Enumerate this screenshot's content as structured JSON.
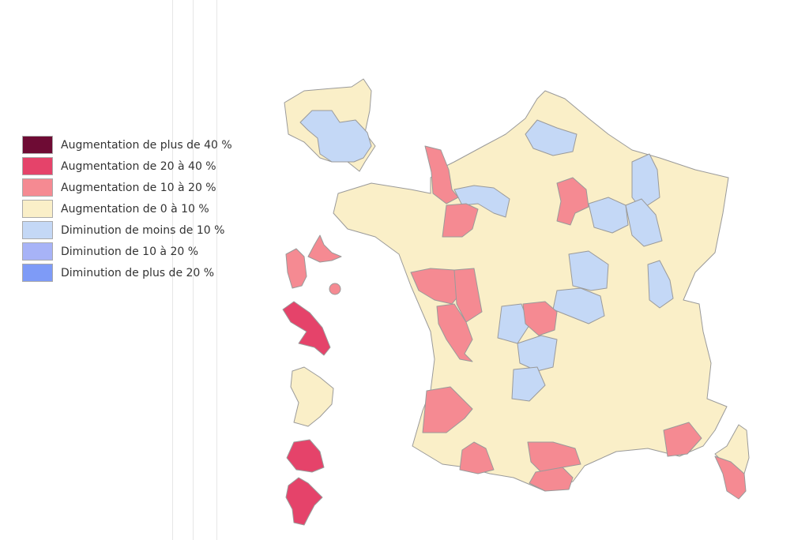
{
  "legend": {
    "items": [
      {
        "label": "Augmentation de plus de 40 %",
        "color": "#6e0b34"
      },
      {
        "label": "Augmentation de 20 à 40 %",
        "color": "#e5436a"
      },
      {
        "label": "Augmentation de 10 à 20 %",
        "color": "#f58a92"
      },
      {
        "label": "Augmentation de 0 à 10 %",
        "color": "#faefc8"
      },
      {
        "label": "Diminution de moins de 10 %",
        "color": "#c4d8f6"
      },
      {
        "label": "Diminution de 10 à 20 %",
        "color": "#a7b3f7"
      },
      {
        "label": "Diminution de plus de 20 %",
        "color": "#7e9bf7"
      }
    ]
  }
}
